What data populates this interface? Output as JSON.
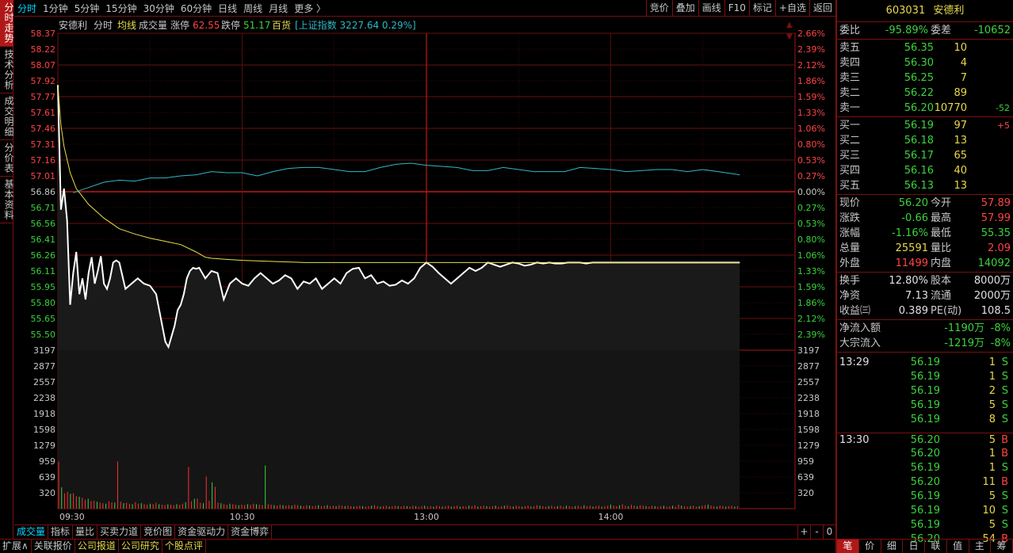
{
  "side_tabs": [
    "分时走势",
    "技术分析",
    "成交明细",
    "分价表",
    "基本资料"
  ],
  "period_tabs": [
    "分时",
    "1分钟",
    "5分钟",
    "15分钟",
    "30分钟",
    "60分钟",
    "日线",
    "周线",
    "月线",
    "更多 〉"
  ],
  "top_right_buttons": [
    "竞价",
    "叠加",
    "画线",
    "F10",
    "标记",
    "+自选",
    "返回"
  ],
  "legend": {
    "name": "安德利",
    "items": [
      "分时",
      "均线",
      "成交量"
    ],
    "limit_up_label": "涨停",
    "limit_up": "62.55",
    "limit_down_label": "跌停",
    "limit_down": "51.17",
    "sector": "百货",
    "index": "[上证指数 3227.64 0.29%]"
  },
  "chart_data": {
    "type": "line",
    "title": "安德利 分时",
    "prev_close": 56.86,
    "price_axis_labels": [
      "58.37",
      "58.22",
      "58.07",
      "57.92",
      "57.77",
      "57.61",
      "57.46",
      "57.31",
      "57.16",
      "57.01",
      "56.86",
      "56.71",
      "56.56",
      "56.41",
      "56.26",
      "56.11",
      "55.95",
      "55.80",
      "55.65",
      "55.50"
    ],
    "pct_axis_labels": [
      "2.66%",
      "2.39%",
      "2.12%",
      "1.86%",
      "1.59%",
      "1.33%",
      "1.06%",
      "0.80%",
      "0.53%",
      "0.27%",
      "0.00%",
      "0.27%",
      "0.53%",
      "0.80%",
      "1.06%",
      "1.33%",
      "1.59%",
      "1.86%",
      "2.12%",
      "2.39%"
    ],
    "volume_axis_labels": [
      "3197",
      "2877",
      "2557",
      "2238",
      "1918",
      "1598",
      "1279",
      "959",
      "639",
      "320"
    ],
    "ylim": [
      55.35,
      58.37
    ],
    "volume_max": 3197,
    "time_labels": [
      "09:30",
      "10:30",
      "13:00",
      "14:00"
    ],
    "total_minutes": 240,
    "series": [
      {
        "name": "价格",
        "color": "#ffffff",
        "x": [
          0,
          1,
          2,
          3,
          4,
          5,
          6,
          7,
          8,
          9,
          10,
          11,
          12,
          13,
          14,
          15,
          16,
          17,
          18,
          19,
          20,
          22,
          24,
          26,
          28,
          30,
          32,
          34,
          35,
          36,
          37,
          38,
          39,
          40,
          41,
          42,
          43,
          44,
          45,
          46,
          47,
          48,
          50,
          52,
          54,
          56,
          58,
          60,
          62,
          64,
          66,
          68,
          70,
          72,
          74,
          76,
          78,
          80,
          82,
          84,
          86,
          88,
          90,
          92,
          94,
          96,
          98,
          100,
          102,
          104,
          106,
          108,
          110,
          112,
          114,
          116,
          118,
          120,
          122,
          124,
          126,
          128,
          130,
          132,
          134,
          136,
          138,
          140,
          142,
          144,
          146,
          148,
          150,
          152,
          154,
          156,
          158,
          160,
          162,
          164,
          166,
          168,
          170,
          172,
          174,
          176,
          178,
          180,
          182,
          184,
          186,
          188,
          190,
          192,
          194,
          196,
          198,
          200,
          202,
          204,
          206,
          208,
          210,
          212,
          214,
          216,
          218,
          220,
          222
        ],
        "y": [
          57.88,
          56.7,
          56.9,
          56.6,
          55.8,
          56.1,
          56.3,
          55.9,
          56.05,
          55.85,
          56.1,
          56.25,
          56.0,
          56.12,
          56.26,
          56.0,
          55.95,
          56.05,
          56.2,
          56.22,
          56.2,
          55.95,
          56.0,
          56.05,
          56.0,
          55.98,
          55.9,
          55.6,
          55.45,
          55.4,
          55.5,
          55.6,
          55.75,
          55.8,
          55.9,
          56.05,
          56.12,
          56.15,
          56.14,
          56.15,
          56.1,
          56.05,
          56.12,
          56.1,
          55.85,
          56.0,
          56.05,
          56.0,
          55.98,
          56.05,
          56.1,
          56.05,
          56.0,
          56.03,
          56.08,
          56.05,
          55.95,
          56.02,
          56.0,
          56.05,
          55.95,
          56.0,
          56.05,
          56.0,
          56.1,
          56.14,
          56.15,
          56.05,
          56.08,
          56.0,
          56.02,
          55.98,
          55.99,
          56.03,
          56.0,
          56.05,
          56.15,
          56.2,
          56.16,
          56.1,
          56.05,
          56.0,
          56.05,
          56.1,
          56.15,
          56.12,
          56.15,
          56.2,
          56.18,
          56.16,
          56.18,
          56.2,
          56.19,
          56.17,
          56.18,
          56.2,
          56.19,
          56.2,
          56.19,
          56.19,
          56.2,
          56.2,
          56.2,
          56.19,
          56.2,
          56.2,
          56.2,
          56.2,
          56.2,
          56.2,
          56.2,
          56.2,
          56.2,
          56.2,
          56.2,
          56.2,
          56.2,
          56.2,
          56.2,
          56.2,
          56.2,
          56.2,
          56.2,
          56.2,
          56.2,
          56.2,
          56.2,
          56.2,
          56.2
        ]
      },
      {
        "name": "均价",
        "color": "#e8e04a",
        "x": [
          0,
          1,
          2,
          4,
          6,
          10,
          15,
          20,
          25,
          30,
          35,
          40,
          45,
          48,
          50,
          55,
          60,
          70,
          80,
          90,
          100,
          110,
          120,
          140,
          160,
          180,
          200,
          222
        ],
        "y": [
          57.88,
          57.5,
          57.3,
          57.05,
          56.9,
          56.75,
          56.62,
          56.52,
          56.47,
          56.43,
          56.4,
          56.37,
          56.3,
          56.25,
          56.24,
          56.23,
          56.22,
          56.21,
          56.2,
          56.2,
          56.2,
          56.2,
          56.2,
          56.2,
          56.2,
          56.2,
          56.2,
          56.2
        ]
      },
      {
        "name": "上证指数",
        "color": "#2fb8c8",
        "x": [
          5,
          10,
          15,
          20,
          25,
          30,
          35,
          40,
          45,
          50,
          55,
          60,
          65,
          70,
          75,
          80,
          85,
          90,
          95,
          100,
          105,
          110,
          115,
          120,
          125,
          130,
          135,
          140,
          145,
          150,
          155,
          160,
          165,
          170,
          175,
          180,
          185,
          190,
          195,
          200,
          205,
          210,
          215,
          222
        ],
        "y": [
          56.86,
          56.91,
          56.96,
          56.98,
          56.97,
          57.0,
          57.0,
          57.02,
          57.03,
          57.06,
          57.05,
          57.05,
          57.02,
          57.06,
          57.09,
          57.1,
          57.1,
          57.08,
          57.06,
          57.06,
          57.1,
          57.13,
          57.14,
          57.12,
          57.11,
          57.1,
          57.07,
          57.07,
          57.1,
          57.08,
          57.06,
          57.06,
          57.06,
          57.1,
          57.09,
          57.08,
          57.06,
          57.07,
          57.08,
          57.08,
          57.06,
          57.08,
          57.06,
          57.03
        ]
      }
    ],
    "volume_bars": [
      950,
      430,
      310,
      340,
      300,
      310,
      250,
      240,
      220,
      180,
      200,
      150,
      160,
      140,
      120,
      110,
      100,
      150,
      130,
      120,
      950,
      140,
      110,
      120,
      100,
      90,
      130,
      100,
      110,
      90,
      80,
      100,
      90,
      120,
      90,
      80,
      70,
      90,
      80,
      70,
      90,
      80,
      100,
      130,
      840,
      150,
      200,
      200,
      120,
      110,
      650,
      160,
      530,
      440,
      120,
      110,
      90,
      80,
      100,
      90,
      80,
      70,
      80,
      70,
      90,
      80,
      100,
      90,
      80,
      70,
      870,
      90,
      80,
      70,
      60,
      80,
      70,
      60,
      70,
      60,
      80,
      70,
      60,
      50,
      70,
      60,
      50,
      60,
      70,
      50,
      60,
      70,
      50,
      60,
      50,
      70,
      60,
      50,
      60,
      50,
      40,
      50,
      60,
      50,
      40,
      50,
      60,
      70,
      50,
      40,
      50,
      60,
      40,
      50,
      60,
      50,
      40,
      60,
      50,
      40,
      60,
      50,
      40,
      50,
      60,
      40,
      50,
      40,
      60,
      50,
      40,
      50,
      60,
      40,
      50,
      60,
      40,
      50,
      40,
      60,
      50,
      70,
      40,
      50,
      60,
      50,
      40,
      50,
      60,
      40,
      50,
      60,
      70,
      50,
      40,
      60,
      50,
      40,
      50,
      60,
      40,
      50,
      70,
      60,
      50,
      40,
      50,
      60,
      40,
      50,
      60,
      40,
      60,
      50,
      40,
      50,
      60,
      40,
      70,
      50,
      60,
      40,
      50,
      60,
      40,
      50,
      60,
      80,
      60,
      50,
      70,
      90,
      60,
      50,
      80,
      60,
      50,
      70,
      60,
      50,
      40,
      60,
      50,
      40,
      50,
      60,
      40,
      50,
      60,
      40,
      80,
      60,
      50,
      40,
      50,
      60,
      40,
      50,
      60,
      70,
      80,
      60,
      50,
      40,
      60,
      50,
      40,
      50,
      60,
      40,
      50
    ]
  },
  "bottom_tabs1": [
    "成交量",
    "指标",
    "量比",
    "买卖力道",
    "竞价图",
    "资金驱动力",
    "资金博弈"
  ],
  "bottom_controls": [
    "+",
    "-",
    "0"
  ],
  "bottom_tabs2": [
    "扩展∧",
    "关联报价",
    "公司报道",
    "公司研究",
    "个股点评"
  ],
  "quote": {
    "code": "603031",
    "name": "安德利",
    "weibi_label": "委比",
    "weibi": "-95.89%",
    "weicha_label": "委差",
    "weicha": "-10652",
    "asks": [
      {
        "label": "卖五",
        "price": "56.35",
        "vol": "10",
        "chg": ""
      },
      {
        "label": "卖四",
        "price": "56.30",
        "vol": "4",
        "chg": ""
      },
      {
        "label": "卖三",
        "price": "56.25",
        "vol": "7",
        "chg": ""
      },
      {
        "label": "卖二",
        "price": "56.22",
        "vol": "89",
        "chg": ""
      },
      {
        "label": "卖一",
        "price": "56.20",
        "vol": "10770",
        "chg": "-52"
      }
    ],
    "bids": [
      {
        "label": "买一",
        "price": "56.19",
        "vol": "97",
        "chg": "+5"
      },
      {
        "label": "买二",
        "price": "56.18",
        "vol": "13",
        "chg": ""
      },
      {
        "label": "买三",
        "price": "56.17",
        "vol": "65",
        "chg": ""
      },
      {
        "label": "买四",
        "price": "56.16",
        "vol": "40",
        "chg": ""
      },
      {
        "label": "买五",
        "price": "56.13",
        "vol": "13",
        "chg": ""
      }
    ],
    "stats1": [
      {
        "l1": "现价",
        "v1": "56.20",
        "c1": "g",
        "l2": "今开",
        "v2": "57.89",
        "c2": "r"
      },
      {
        "l1": "涨跌",
        "v1": "-0.66",
        "c1": "g",
        "l2": "最高",
        "v2": "57.99",
        "c2": "r"
      },
      {
        "l1": "涨幅",
        "v1": "-1.16%",
        "c1": "g",
        "l2": "最低",
        "v2": "55.35",
        "c2": "g"
      },
      {
        "l1": "总量",
        "v1": "25591",
        "c1": "y",
        "l2": "量比",
        "v2": "2.09",
        "c2": "r"
      },
      {
        "l1": "外盘",
        "v1": "11499",
        "c1": "r",
        "l2": "内盘",
        "v2": "14092",
        "c2": "g"
      }
    ],
    "stats2": [
      {
        "l1": "换手",
        "v1": "12.80%",
        "c1": "w",
        "l2": "股本",
        "v2": "8000万",
        "c2": "w"
      },
      {
        "l1": "净资",
        "v1": "7.13",
        "c1": "w",
        "l2": "流通",
        "v2": "2000万",
        "c2": "w"
      },
      {
        "l1": "收益㈢",
        "v1": "0.389",
        "c1": "w",
        "l2": "PE(动)",
        "v2": "108.5",
        "c2": "w"
      }
    ],
    "flows": [
      {
        "label": "净流入额",
        "value": "-1190万",
        "pct": "-8%"
      },
      {
        "label": "大宗流入",
        "value": "-1219万",
        "pct": "-8%"
      }
    ],
    "ticks": [
      {
        "time": "13:29",
        "price": "56.19",
        "vol": "1",
        "dir": "S"
      },
      {
        "time": "",
        "price": "56.19",
        "vol": "1",
        "dir": "S"
      },
      {
        "time": "",
        "price": "56.19",
        "vol": "2",
        "dir": "S"
      },
      {
        "time": "",
        "price": "56.19",
        "vol": "5",
        "dir": "S"
      },
      {
        "time": "",
        "price": "56.19",
        "vol": "8",
        "dir": "S"
      },
      {
        "time": "13:30",
        "price": "56.20",
        "vol": "5",
        "dir": "B"
      },
      {
        "time": "",
        "price": "56.20",
        "vol": "1",
        "dir": "B"
      },
      {
        "time": "",
        "price": "56.19",
        "vol": "1",
        "dir": "S"
      },
      {
        "time": "",
        "price": "56.20",
        "vol": "11",
        "dir": "B"
      },
      {
        "time": "",
        "price": "56.19",
        "vol": "5",
        "dir": "S"
      },
      {
        "time": "",
        "price": "56.19",
        "vol": "10",
        "dir": "S"
      },
      {
        "time": "",
        "price": "56.19",
        "vol": "5",
        "dir": "S"
      },
      {
        "time": "",
        "price": "56.20",
        "vol": "54",
        "dir": "B"
      }
    ],
    "bottom_tabs": [
      "笔",
      "价",
      "细",
      "日",
      "联",
      "值",
      "主",
      "筹"
    ]
  }
}
